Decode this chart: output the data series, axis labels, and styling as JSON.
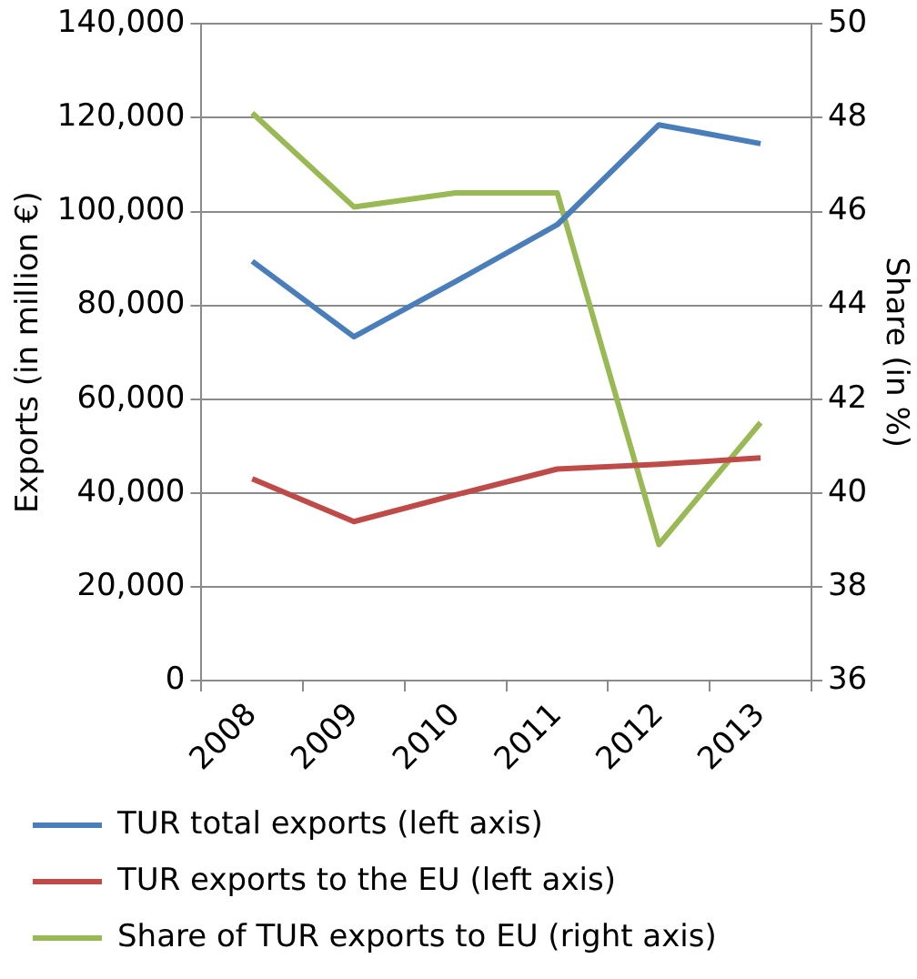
{
  "chart_data": {
    "type": "line",
    "categories": [
      "2008",
      "2009",
      "2010",
      "2011",
      "2012",
      "2013"
    ],
    "ylabel": "Exports (in million €)",
    "y2label": "Share (in %)",
    "ylim": [
      0,
      140000
    ],
    "yticks": [
      {
        "value": 0,
        "label": "0"
      },
      {
        "value": 20000,
        "label": "20,000"
      },
      {
        "value": 40000,
        "label": "40,000"
      },
      {
        "value": 60000,
        "label": "60,000"
      },
      {
        "value": 80000,
        "label": "80,000"
      },
      {
        "value": 100000,
        "label": "100,000"
      },
      {
        "value": 120000,
        "label": "120,000"
      },
      {
        "value": 140000,
        "label": "140,000"
      }
    ],
    "y2lim": [
      36,
      50
    ],
    "y2ticks": [
      36,
      38,
      40,
      42,
      44,
      46,
      48,
      50
    ],
    "series": [
      {
        "name": "TUR total exports (left axis)",
        "color": "#4a7ebb",
        "values": [
          89400,
          73300,
          85100,
          97200,
          118500,
          114500
        ]
      },
      {
        "name": "TUR exports to the EU (left axis)",
        "color": "#be4b48",
        "values": [
          43000,
          33900,
          39600,
          45100,
          46100,
          47500
        ]
      },
      {
        "name": "Share of TUR exports to EU (right axis)",
        "color": "#98b954",
        "axis": "y2",
        "values": [
          48.1,
          46.1,
          46.4,
          46.4,
          38.9,
          41.5
        ]
      }
    ],
    "grid": "y",
    "legend": "bottom",
    "marker": "none",
    "line_style": "solid"
  }
}
